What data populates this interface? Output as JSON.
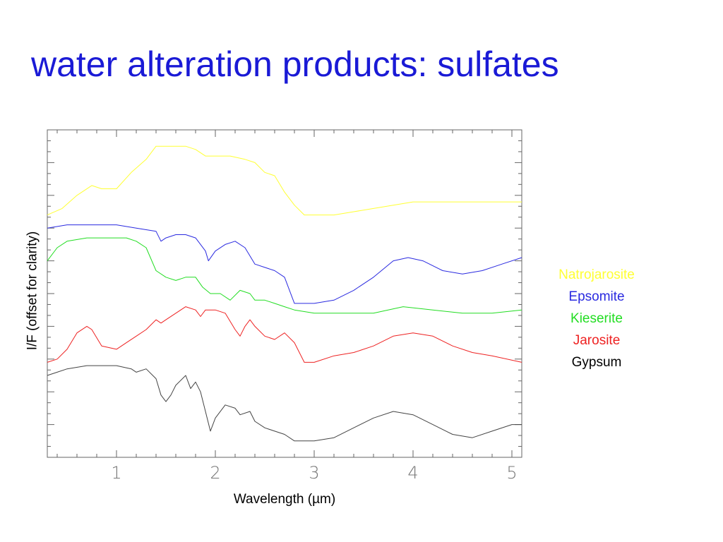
{
  "slide": {
    "title": "water alteration products: sulfates"
  },
  "chart_data": {
    "type": "line",
    "title": "",
    "xlabel": "Wavelength (µm)",
    "ylabel": "I/F (offset for clarity)",
    "xlim": [
      0.3,
      5.1
    ],
    "ylim": [
      0,
      1
    ],
    "x_ticks": [
      "1",
      "2",
      "3",
      "4",
      "5"
    ],
    "y_tick_labels": "none",
    "grid": false,
    "legend_position": "right",
    "series": [
      {
        "name": "Natrojarosite",
        "color": "#ffff33",
        "points": [
          [
            0.3,
            0.74
          ],
          [
            0.45,
            0.76
          ],
          [
            0.6,
            0.8
          ],
          [
            0.75,
            0.83
          ],
          [
            0.85,
            0.82
          ],
          [
            1.0,
            0.82
          ],
          [
            1.15,
            0.87
          ],
          [
            1.3,
            0.91
          ],
          [
            1.4,
            0.95
          ],
          [
            1.5,
            0.95
          ],
          [
            1.6,
            0.95
          ],
          [
            1.7,
            0.95
          ],
          [
            1.8,
            0.94
          ],
          [
            1.9,
            0.92
          ],
          [
            2.0,
            0.92
          ],
          [
            2.15,
            0.92
          ],
          [
            2.3,
            0.91
          ],
          [
            2.4,
            0.9
          ],
          [
            2.5,
            0.87
          ],
          [
            2.6,
            0.86
          ],
          [
            2.7,
            0.81
          ],
          [
            2.8,
            0.77
          ],
          [
            2.9,
            0.74
          ],
          [
            3.0,
            0.74
          ],
          [
            3.2,
            0.74
          ],
          [
            3.4,
            0.75
          ],
          [
            3.6,
            0.76
          ],
          [
            3.8,
            0.77
          ],
          [
            4.0,
            0.78
          ],
          [
            4.2,
            0.78
          ],
          [
            4.5,
            0.78
          ],
          [
            4.8,
            0.78
          ],
          [
            5.1,
            0.78
          ]
        ]
      },
      {
        "name": "Epsomite",
        "color": "#2a2ae0",
        "points": [
          [
            0.3,
            0.7
          ],
          [
            0.5,
            0.71
          ],
          [
            0.7,
            0.71
          ],
          [
            0.9,
            0.71
          ],
          [
            1.0,
            0.71
          ],
          [
            1.2,
            0.7
          ],
          [
            1.4,
            0.69
          ],
          [
            1.45,
            0.66
          ],
          [
            1.5,
            0.67
          ],
          [
            1.6,
            0.68
          ],
          [
            1.7,
            0.68
          ],
          [
            1.8,
            0.67
          ],
          [
            1.9,
            0.63
          ],
          [
            1.93,
            0.6
          ],
          [
            2.0,
            0.63
          ],
          [
            2.1,
            0.65
          ],
          [
            2.2,
            0.66
          ],
          [
            2.3,
            0.64
          ],
          [
            2.4,
            0.59
          ],
          [
            2.5,
            0.58
          ],
          [
            2.6,
            0.57
          ],
          [
            2.7,
            0.55
          ],
          [
            2.8,
            0.47
          ],
          [
            3.0,
            0.47
          ],
          [
            3.2,
            0.48
          ],
          [
            3.4,
            0.51
          ],
          [
            3.6,
            0.55
          ],
          [
            3.8,
            0.6
          ],
          [
            3.95,
            0.61
          ],
          [
            4.1,
            0.6
          ],
          [
            4.3,
            0.57
          ],
          [
            4.5,
            0.56
          ],
          [
            4.7,
            0.57
          ],
          [
            4.9,
            0.59
          ],
          [
            5.1,
            0.61
          ]
        ]
      },
      {
        "name": "Kieserite",
        "color": "#22dd22",
        "points": [
          [
            0.3,
            0.6
          ],
          [
            0.4,
            0.64
          ],
          [
            0.5,
            0.66
          ],
          [
            0.7,
            0.67
          ],
          [
            0.9,
            0.67
          ],
          [
            1.1,
            0.67
          ],
          [
            1.2,
            0.66
          ],
          [
            1.3,
            0.64
          ],
          [
            1.4,
            0.57
          ],
          [
            1.5,
            0.55
          ],
          [
            1.6,
            0.54
          ],
          [
            1.7,
            0.55
          ],
          [
            1.8,
            0.55
          ],
          [
            1.87,
            0.52
          ],
          [
            1.95,
            0.5
          ],
          [
            2.05,
            0.5
          ],
          [
            2.15,
            0.48
          ],
          [
            2.25,
            0.51
          ],
          [
            2.35,
            0.5
          ],
          [
            2.4,
            0.48
          ],
          [
            2.5,
            0.48
          ],
          [
            2.6,
            0.47
          ],
          [
            2.7,
            0.46
          ],
          [
            2.8,
            0.45
          ],
          [
            3.0,
            0.44
          ],
          [
            3.3,
            0.44
          ],
          [
            3.6,
            0.44
          ],
          [
            3.9,
            0.46
          ],
          [
            4.2,
            0.45
          ],
          [
            4.5,
            0.44
          ],
          [
            4.8,
            0.44
          ],
          [
            5.1,
            0.45
          ]
        ]
      },
      {
        "name": "Jarosite",
        "color": "#ee2222",
        "points": [
          [
            0.3,
            0.29
          ],
          [
            0.4,
            0.3
          ],
          [
            0.5,
            0.33
          ],
          [
            0.6,
            0.38
          ],
          [
            0.7,
            0.4
          ],
          [
            0.75,
            0.39
          ],
          [
            0.85,
            0.34
          ],
          [
            1.0,
            0.33
          ],
          [
            1.1,
            0.35
          ],
          [
            1.2,
            0.37
          ],
          [
            1.3,
            0.39
          ],
          [
            1.4,
            0.42
          ],
          [
            1.45,
            0.41
          ],
          [
            1.5,
            0.42
          ],
          [
            1.6,
            0.44
          ],
          [
            1.7,
            0.46
          ],
          [
            1.8,
            0.45
          ],
          [
            1.85,
            0.43
          ],
          [
            1.9,
            0.45
          ],
          [
            2.0,
            0.45
          ],
          [
            2.1,
            0.44
          ],
          [
            2.2,
            0.39
          ],
          [
            2.25,
            0.37
          ],
          [
            2.3,
            0.4
          ],
          [
            2.35,
            0.42
          ],
          [
            2.4,
            0.4
          ],
          [
            2.5,
            0.37
          ],
          [
            2.6,
            0.36
          ],
          [
            2.7,
            0.38
          ],
          [
            2.8,
            0.35
          ],
          [
            2.9,
            0.29
          ],
          [
            3.0,
            0.29
          ],
          [
            3.2,
            0.31
          ],
          [
            3.4,
            0.32
          ],
          [
            3.6,
            0.34
          ],
          [
            3.8,
            0.37
          ],
          [
            4.0,
            0.38
          ],
          [
            4.2,
            0.37
          ],
          [
            4.4,
            0.34
          ],
          [
            4.6,
            0.32
          ],
          [
            4.8,
            0.31
          ],
          [
            5.1,
            0.29
          ]
        ]
      },
      {
        "name": "Gypsum",
        "color": "#444444",
        "points": [
          [
            0.3,
            0.25
          ],
          [
            0.4,
            0.26
          ],
          [
            0.5,
            0.27
          ],
          [
            0.7,
            0.28
          ],
          [
            0.9,
            0.28
          ],
          [
            1.0,
            0.28
          ],
          [
            1.15,
            0.27
          ],
          [
            1.2,
            0.26
          ],
          [
            1.3,
            0.27
          ],
          [
            1.4,
            0.24
          ],
          [
            1.45,
            0.19
          ],
          [
            1.5,
            0.17
          ],
          [
            1.55,
            0.19
          ],
          [
            1.6,
            0.22
          ],
          [
            1.7,
            0.25
          ],
          [
            1.75,
            0.21
          ],
          [
            1.8,
            0.23
          ],
          [
            1.85,
            0.2
          ],
          [
            1.9,
            0.14
          ],
          [
            1.95,
            0.08
          ],
          [
            2.0,
            0.12
          ],
          [
            2.1,
            0.16
          ],
          [
            2.2,
            0.15
          ],
          [
            2.25,
            0.13
          ],
          [
            2.35,
            0.14
          ],
          [
            2.4,
            0.11
          ],
          [
            2.5,
            0.09
          ],
          [
            2.6,
            0.08
          ],
          [
            2.7,
            0.07
          ],
          [
            2.8,
            0.05
          ],
          [
            3.0,
            0.05
          ],
          [
            3.2,
            0.06
          ],
          [
            3.4,
            0.09
          ],
          [
            3.6,
            0.12
          ],
          [
            3.8,
            0.14
          ],
          [
            4.0,
            0.13
          ],
          [
            4.2,
            0.1
          ],
          [
            4.4,
            0.07
          ],
          [
            4.6,
            0.06
          ],
          [
            4.8,
            0.08
          ],
          [
            5.0,
            0.1
          ],
          [
            5.1,
            0.1
          ]
        ]
      }
    ]
  }
}
